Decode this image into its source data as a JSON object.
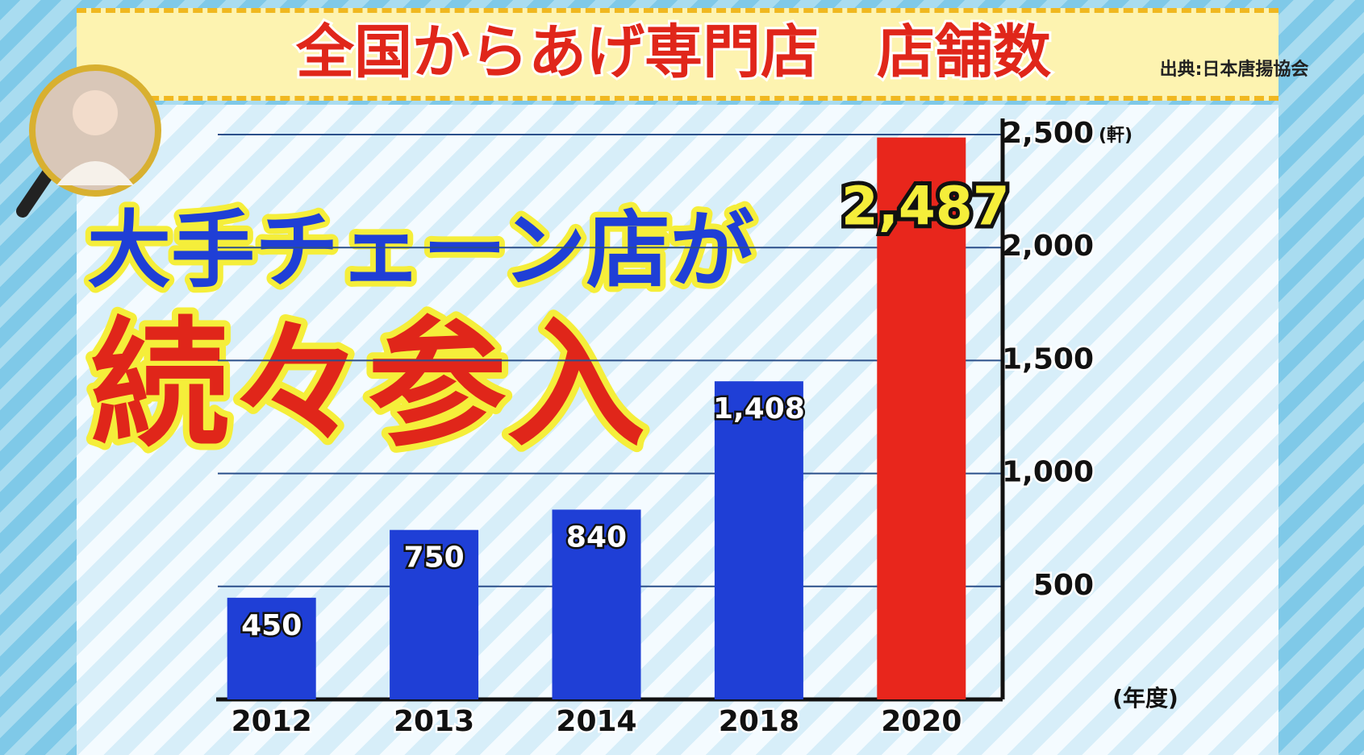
{
  "chart_data": {
    "type": "bar",
    "title": "全国からあげ専門店　店舗数",
    "source": "出典:日本唐揚協会",
    "headline": [
      "大手チェーン店が",
      "続々参入"
    ],
    "y_unit": "(軒)",
    "x_unit": "(年度)",
    "categories": [
      "2012",
      "2013",
      "2014",
      "2018",
      "2020"
    ],
    "values": [
      450,
      750,
      840,
      1408,
      2487
    ],
    "value_labels": [
      "450",
      "750",
      "840",
      "1,408",
      "2,487"
    ],
    "colors": [
      "#1f3fd6",
      "#1f3fd6",
      "#1f3fd6",
      "#1f3fd6",
      "#e8261c"
    ],
    "ylim": [
      0,
      2500
    ],
    "yticks": [
      500,
      {
        "value": 1000,
        "label": "1,000"
      },
      {
        "value": 1500,
        "label": "1,500"
      },
      {
        "value": 2000,
        "label": "2,000"
      },
      {
        "value": 2500,
        "label": "2,500"
      }
    ],
    "grid": true
  }
}
